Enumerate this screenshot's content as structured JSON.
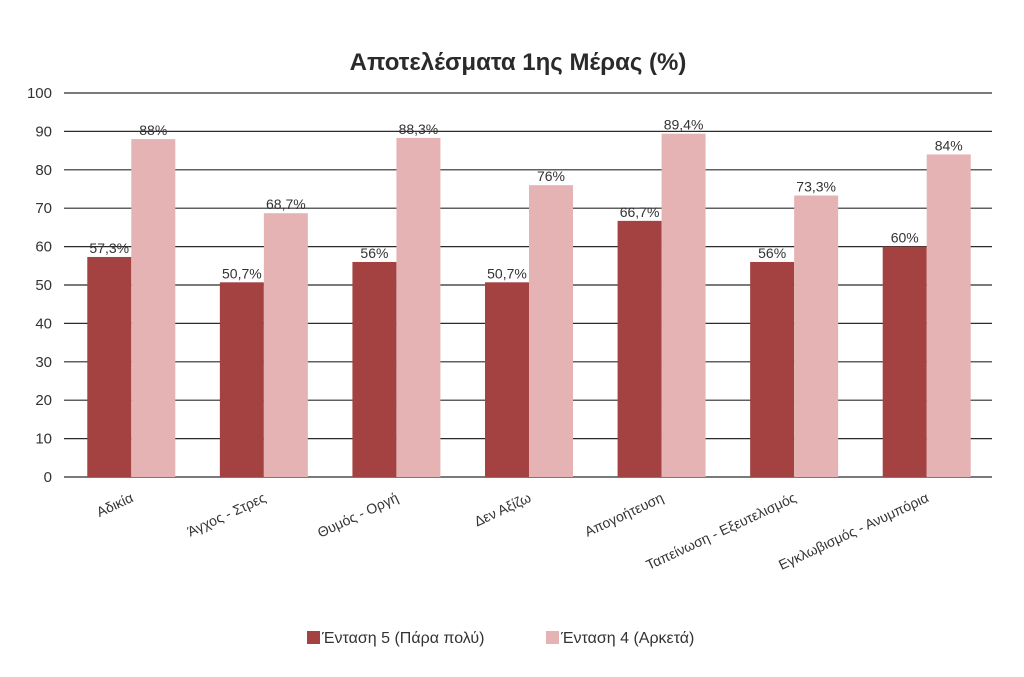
{
  "colors": {
    "series1": "#a44141",
    "series2": "#e5b3b3",
    "grid": "#2b2b2b",
    "text": "#333333"
  },
  "chart_data": {
    "type": "bar",
    "title": "Αποτελέσματα 1ης Μέρας (%)",
    "xlabel": "",
    "ylabel": "",
    "ylim": [
      0,
      100
    ],
    "yticks": [
      0,
      10,
      20,
      30,
      40,
      50,
      60,
      70,
      80,
      90,
      100
    ],
    "grid": true,
    "legend_position": "bottom",
    "categories": [
      "Αδικία",
      "Άγχος - Στρες",
      "Θυμός - Οργή",
      "Δεν Αξίζω",
      "Απογοήτευση",
      "Ταπείνωση - Εξευτελισμός",
      "Εγκλωβισμός - Ανυμπόρια"
    ],
    "series": [
      {
        "name": "Ένταση 5 (Πάρα πολύ)",
        "values": [
          57.3,
          50.7,
          56,
          50.7,
          66.7,
          56,
          60
        ],
        "labels": [
          "57,3%",
          "50,7%",
          "56%",
          "50,7%",
          "66,7%",
          "56%",
          "60%"
        ]
      },
      {
        "name": "Ένταση 4 (Αρκετά)",
        "values": [
          88,
          68.7,
          88.3,
          76,
          89.4,
          73.3,
          84
        ],
        "labels": [
          "88%",
          "68,7%",
          "88,3%",
          "76%",
          "89,4%",
          "73,3%",
          "84%"
        ]
      }
    ]
  }
}
